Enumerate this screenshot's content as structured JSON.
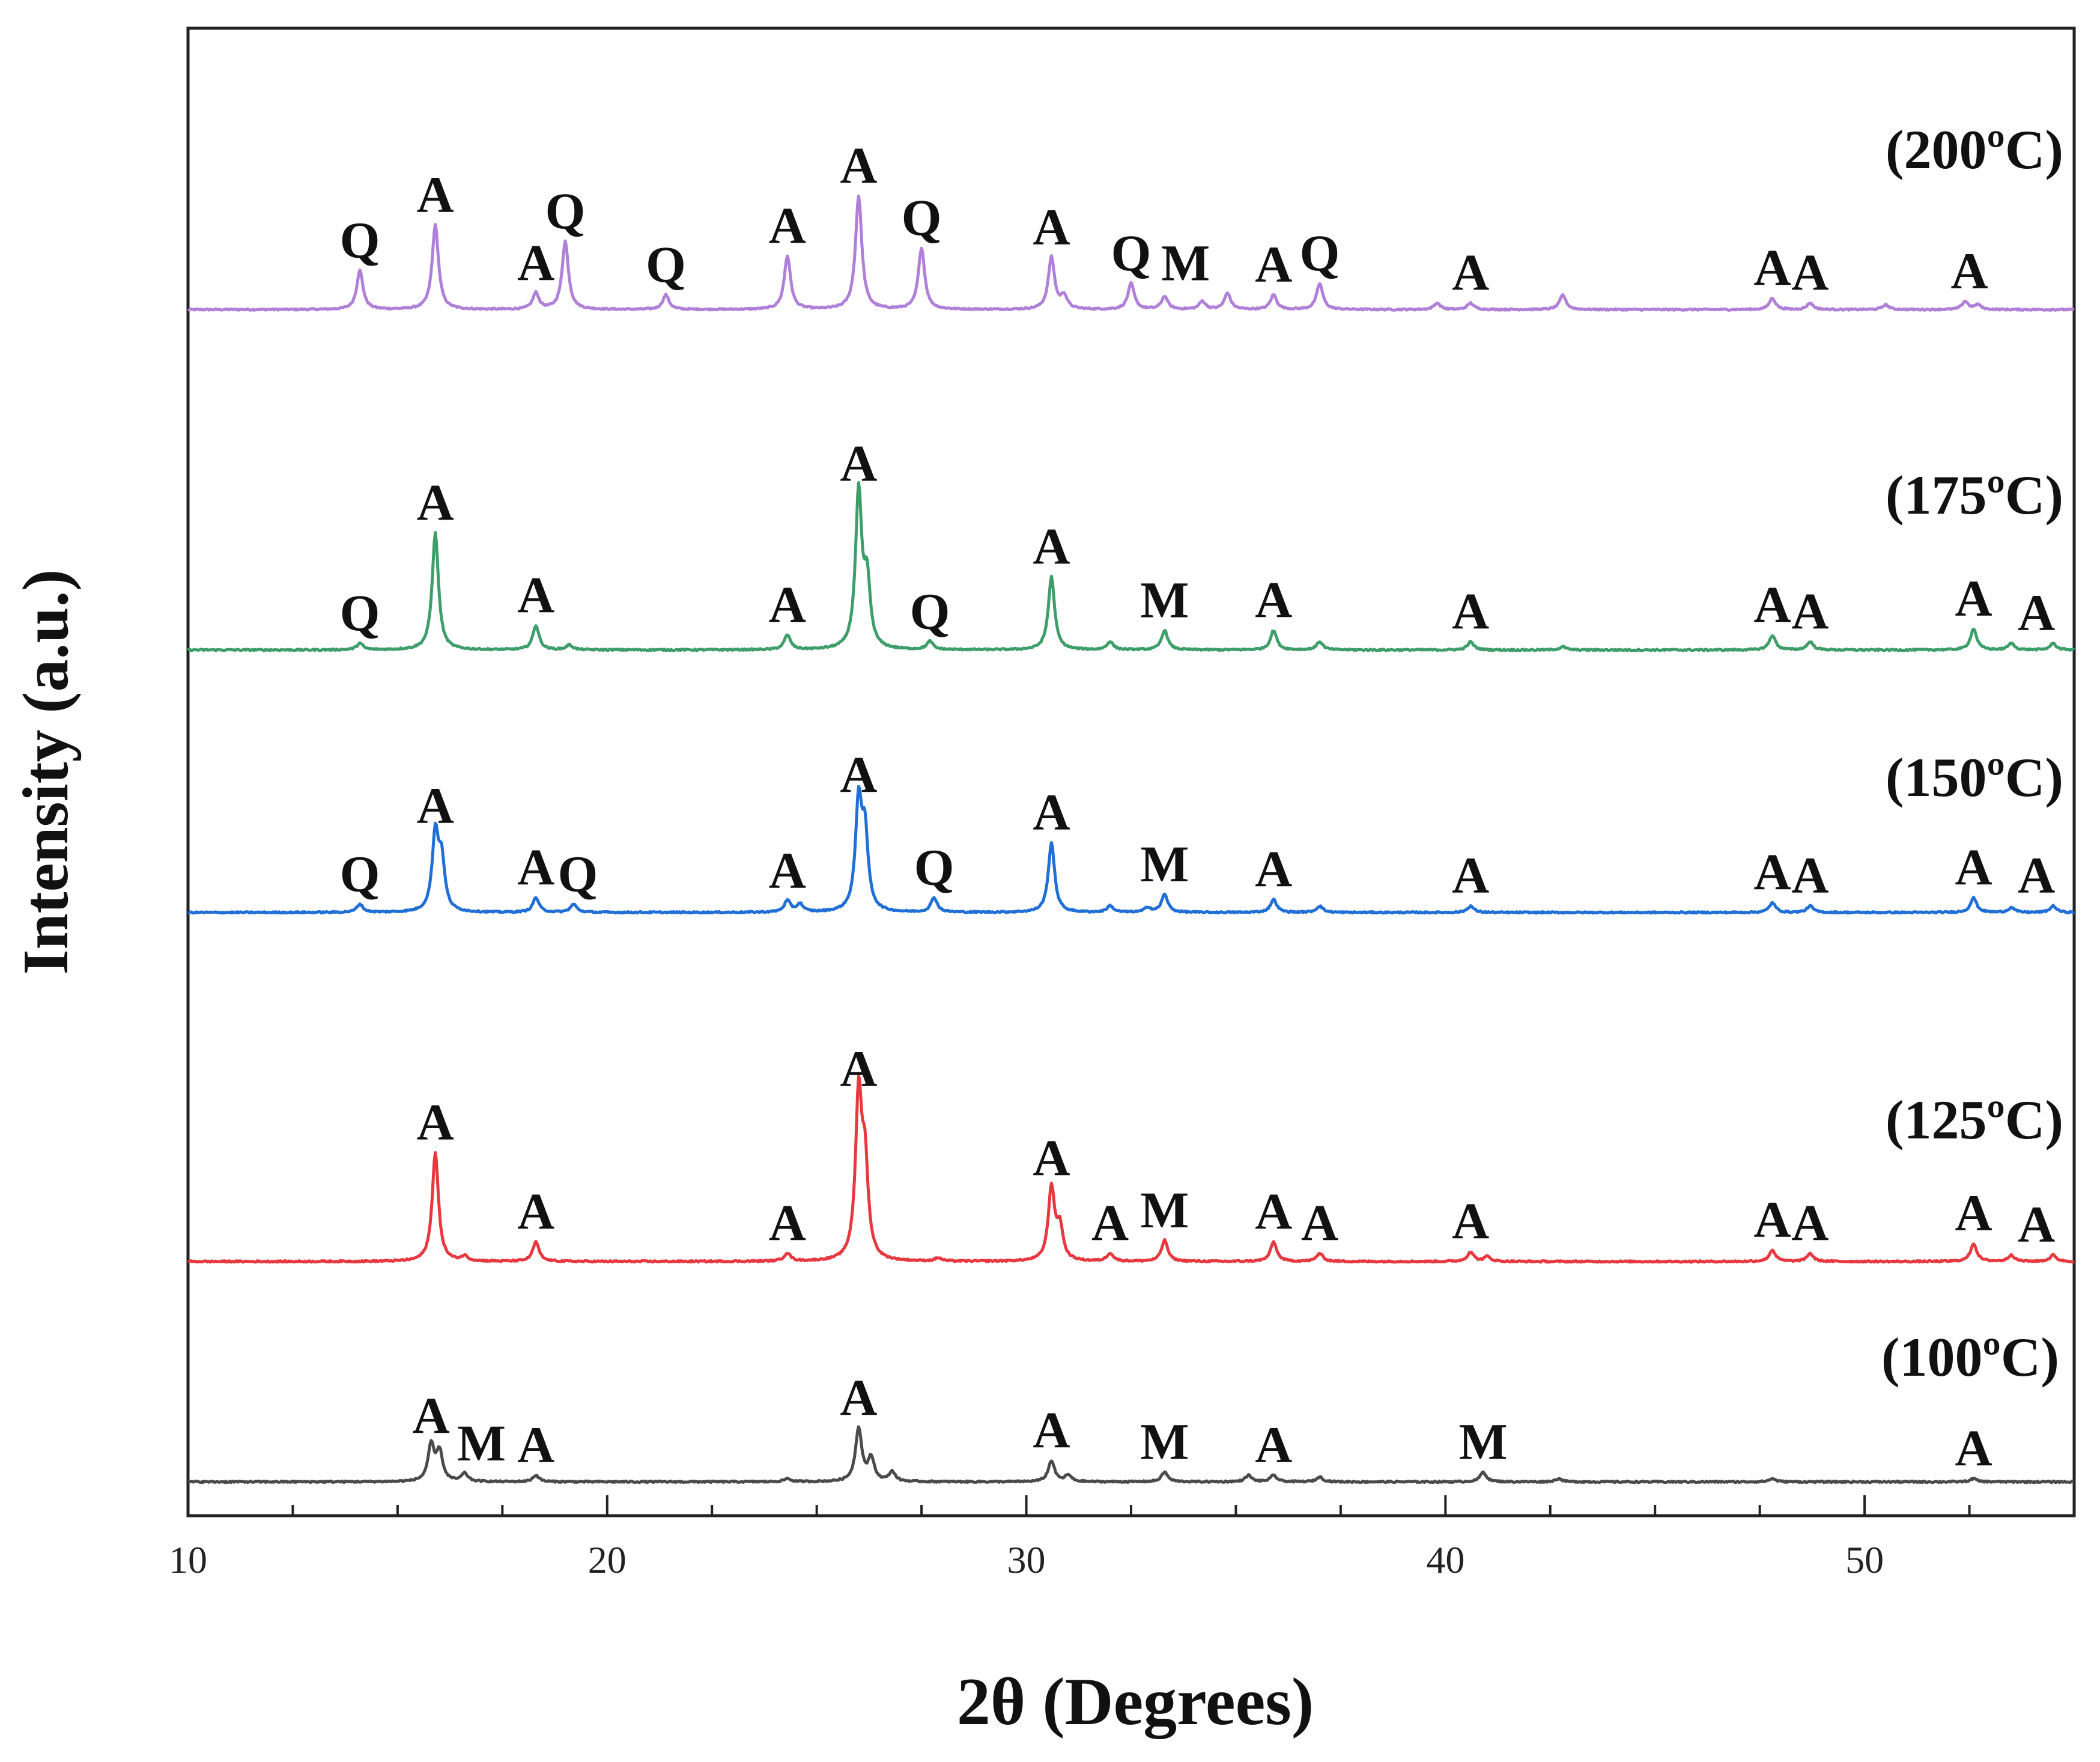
{
  "chart_data": {
    "type": "line",
    "xlabel": "2θ (Degrees)",
    "ylabel": "Intensity (a.u.)",
    "xlim": [
      10,
      55
    ],
    "x_ticks": [
      10,
      20,
      30,
      40,
      50
    ],
    "grid": false,
    "series": [
      {
        "name": "(200ºC)",
        "color": "#b07fd8",
        "baseline": 0.6,
        "peaks": [
          [
            14.1,
            24
          ],
          [
            15.9,
            52
          ],
          [
            18.3,
            10
          ],
          [
            19.0,
            42
          ],
          [
            21.4,
            9
          ],
          [
            24.3,
            33
          ],
          [
            26.0,
            70
          ],
          [
            27.5,
            38
          ],
          [
            30.6,
            32
          ],
          [
            30.9,
            8
          ],
          [
            32.5,
            16
          ],
          [
            33.3,
            8
          ],
          [
            34.2,
            5
          ],
          [
            34.8,
            10
          ],
          [
            35.9,
            9
          ],
          [
            37.0,
            16
          ],
          [
            39.8,
            4
          ],
          [
            40.6,
            4
          ],
          [
            42.8,
            9
          ],
          [
            47.8,
            7
          ],
          [
            48.7,
            4
          ],
          [
            50.5,
            3
          ],
          [
            52.4,
            5
          ],
          [
            52.7,
            3
          ]
        ],
        "labels": [
          {
            "x": 14.1,
            "h": 24,
            "text": "Q"
          },
          {
            "x": 15.9,
            "h": 52,
            "text": "A"
          },
          {
            "x": 18.3,
            "h": 10,
            "text": "A"
          },
          {
            "x": 19.0,
            "h": 42,
            "text": "Q"
          },
          {
            "x": 21.4,
            "h": 9,
            "text": "Q"
          },
          {
            "x": 24.3,
            "h": 33,
            "text": "A"
          },
          {
            "x": 26.0,
            "h": 70,
            "text": "A"
          },
          {
            "x": 27.5,
            "h": 38,
            "text": "Q"
          },
          {
            "x": 30.6,
            "h": 32,
            "text": "A"
          },
          {
            "x": 32.5,
            "h": 16,
            "text": "Q"
          },
          {
            "x": 33.8,
            "h": 10,
            "text": "M"
          },
          {
            "x": 35.9,
            "h": 9,
            "text": "A"
          },
          {
            "x": 37.0,
            "h": 16,
            "text": "Q"
          },
          {
            "x": 40.6,
            "h": 4,
            "text": "A"
          },
          {
            "x": 47.8,
            "h": 7,
            "text": "A"
          },
          {
            "x": 48.7,
            "h": 4,
            "text": "A"
          },
          {
            "x": 52.5,
            "h": 5,
            "text": "A"
          }
        ]
      },
      {
        "name": "(175ºC)",
        "color": "#3e9e6a",
        "baseline": 0.4,
        "peaks": [
          [
            14.1,
            4
          ],
          [
            15.9,
            72
          ],
          [
            18.3,
            15
          ],
          [
            19.1,
            3
          ],
          [
            24.3,
            9
          ],
          [
            26.0,
            96
          ],
          [
            26.2,
            40
          ],
          [
            27.7,
            5
          ],
          [
            30.6,
            45
          ],
          [
            32.0,
            5
          ],
          [
            33.3,
            12
          ],
          [
            35.9,
            12
          ],
          [
            37.0,
            5
          ],
          [
            40.6,
            5
          ],
          [
            42.8,
            2
          ],
          [
            47.8,
            9
          ],
          [
            48.7,
            5
          ],
          [
            52.6,
            13
          ],
          [
            53.5,
            4
          ],
          [
            54.5,
            4
          ]
        ],
        "labels": [
          {
            "x": 14.1,
            "h": 4,
            "text": "Q"
          },
          {
            "x": 15.9,
            "h": 72,
            "text": "A"
          },
          {
            "x": 18.3,
            "h": 15,
            "text": "A"
          },
          {
            "x": 24.3,
            "h": 9,
            "text": "A"
          },
          {
            "x": 26.0,
            "h": 96,
            "text": "A"
          },
          {
            "x": 27.7,
            "h": 5,
            "text": "Q"
          },
          {
            "x": 30.6,
            "h": 45,
            "text": "A"
          },
          {
            "x": 33.3,
            "h": 12,
            "text": "M"
          },
          {
            "x": 35.9,
            "h": 12,
            "text": "A"
          },
          {
            "x": 40.6,
            "h": 5,
            "text": "A"
          },
          {
            "x": 47.8,
            "h": 9,
            "text": "A"
          },
          {
            "x": 48.7,
            "h": 5,
            "text": "A"
          },
          {
            "x": 52.6,
            "h": 13,
            "text": "A"
          },
          {
            "x": 54.1,
            "h": 4,
            "text": "A"
          }
        ]
      },
      {
        "name": "(150ºC)",
        "color": "#1f6fd6",
        "baseline": 0.4,
        "peaks": [
          [
            14.1,
            5
          ],
          [
            15.9,
            47
          ],
          [
            16.05,
            30
          ],
          [
            18.3,
            9
          ],
          [
            19.2,
            5
          ],
          [
            24.3,
            7
          ],
          [
            24.6,
            5
          ],
          [
            26.0,
            66
          ],
          [
            26.15,
            45
          ],
          [
            27.8,
            9
          ],
          [
            30.6,
            43
          ],
          [
            32.0,
            4
          ],
          [
            32.9,
            3
          ],
          [
            33.3,
            11
          ],
          [
            35.9,
            8
          ],
          [
            37.0,
            4
          ],
          [
            40.6,
            4
          ],
          [
            47.8,
            6
          ],
          [
            48.7,
            4
          ],
          [
            52.6,
            9
          ],
          [
            53.5,
            3
          ],
          [
            54.5,
            4
          ]
        ],
        "labels": [
          {
            "x": 14.1,
            "h": 5,
            "text": "Q"
          },
          {
            "x": 15.9,
            "h": 47,
            "text": "A"
          },
          {
            "x": 18.3,
            "h": 9,
            "text": "A"
          },
          {
            "x": 19.3,
            "h": 5,
            "text": "Q"
          },
          {
            "x": 24.3,
            "h": 7,
            "text": "A"
          },
          {
            "x": 26.0,
            "h": 66,
            "text": "A"
          },
          {
            "x": 27.8,
            "h": 9,
            "text": "Q"
          },
          {
            "x": 30.6,
            "h": 43,
            "text": "A"
          },
          {
            "x": 33.3,
            "h": 11,
            "text": "M"
          },
          {
            "x": 35.9,
            "h": 8,
            "text": "A"
          },
          {
            "x": 40.6,
            "h": 4,
            "text": "A"
          },
          {
            "x": 47.8,
            "h": 6,
            "text": "A"
          },
          {
            "x": 48.7,
            "h": 4,
            "text": "A"
          },
          {
            "x": 52.6,
            "h": 9,
            "text": "A"
          },
          {
            "x": 54.1,
            "h": 4,
            "text": "A"
          }
        ]
      },
      {
        "name": "(125ºC)",
        "color": "#e8383f",
        "baseline": 0.4,
        "peaks": [
          [
            15.9,
            67
          ],
          [
            16.6,
            3
          ],
          [
            18.3,
            12
          ],
          [
            24.3,
            5
          ],
          [
            26.0,
            100
          ],
          [
            26.15,
            55
          ],
          [
            27.9,
            2
          ],
          [
            30.6,
            45
          ],
          [
            30.8,
            20
          ],
          [
            32.0,
            5
          ],
          [
            33.3,
            13
          ],
          [
            35.9,
            12
          ],
          [
            37.0,
            5
          ],
          [
            40.6,
            6
          ],
          [
            41.0,
            3
          ],
          [
            47.8,
            7
          ],
          [
            48.7,
            5
          ],
          [
            52.6,
            11
          ],
          [
            53.5,
            4
          ],
          [
            54.5,
            4
          ]
        ],
        "labels": [
          {
            "x": 15.9,
            "h": 67,
            "text": "A"
          },
          {
            "x": 18.3,
            "h": 12,
            "text": "A"
          },
          {
            "x": 24.3,
            "h": 5,
            "text": "A"
          },
          {
            "x": 26.0,
            "h": 100,
            "text": "A"
          },
          {
            "x": 30.6,
            "h": 45,
            "text": "A"
          },
          {
            "x": 32.0,
            "h": 5,
            "text": "A"
          },
          {
            "x": 33.3,
            "h": 13,
            "text": "M"
          },
          {
            "x": 35.9,
            "h": 12,
            "text": "A"
          },
          {
            "x": 37.0,
            "h": 5,
            "text": "A"
          },
          {
            "x": 40.6,
            "h": 6,
            "text": "A"
          },
          {
            "x": 47.8,
            "h": 7,
            "text": "A"
          },
          {
            "x": 48.7,
            "h": 5,
            "text": "A"
          },
          {
            "x": 52.6,
            "h": 11,
            "text": "A"
          },
          {
            "x": 54.1,
            "h": 4,
            "text": "A"
          }
        ]
      },
      {
        "name": "(100ºC)",
        "color": "#4a4a4a",
        "baseline": 0.5,
        "peaks": [
          [
            15.8,
            22
          ],
          [
            16.0,
            18
          ],
          [
            16.6,
            5
          ],
          [
            18.3,
            4
          ],
          [
            24.3,
            2
          ],
          [
            26.0,
            33
          ],
          [
            26.3,
            14
          ],
          [
            26.8,
            6
          ],
          [
            30.6,
            13
          ],
          [
            31.0,
            4
          ],
          [
            33.3,
            6
          ],
          [
            35.3,
            4
          ],
          [
            35.9,
            4
          ],
          [
            37.0,
            3
          ],
          [
            40.9,
            6
          ],
          [
            42.7,
            2
          ],
          [
            47.8,
            2
          ],
          [
            52.6,
            2
          ]
        ],
        "labels": [
          {
            "x": 15.8,
            "h": 22,
            "text": "A"
          },
          {
            "x": 17.0,
            "h": 5,
            "text": "M"
          },
          {
            "x": 18.3,
            "h": 4,
            "text": "A"
          },
          {
            "x": 26.0,
            "h": 33,
            "text": "A"
          },
          {
            "x": 30.6,
            "h": 13,
            "text": "A"
          },
          {
            "x": 33.3,
            "h": 6,
            "text": "M"
          },
          {
            "x": 35.9,
            "h": 4,
            "text": "A"
          },
          {
            "x": 40.9,
            "h": 6,
            "text": "M"
          },
          {
            "x": 52.6,
            "h": 2,
            "text": "A"
          }
        ]
      }
    ]
  }
}
